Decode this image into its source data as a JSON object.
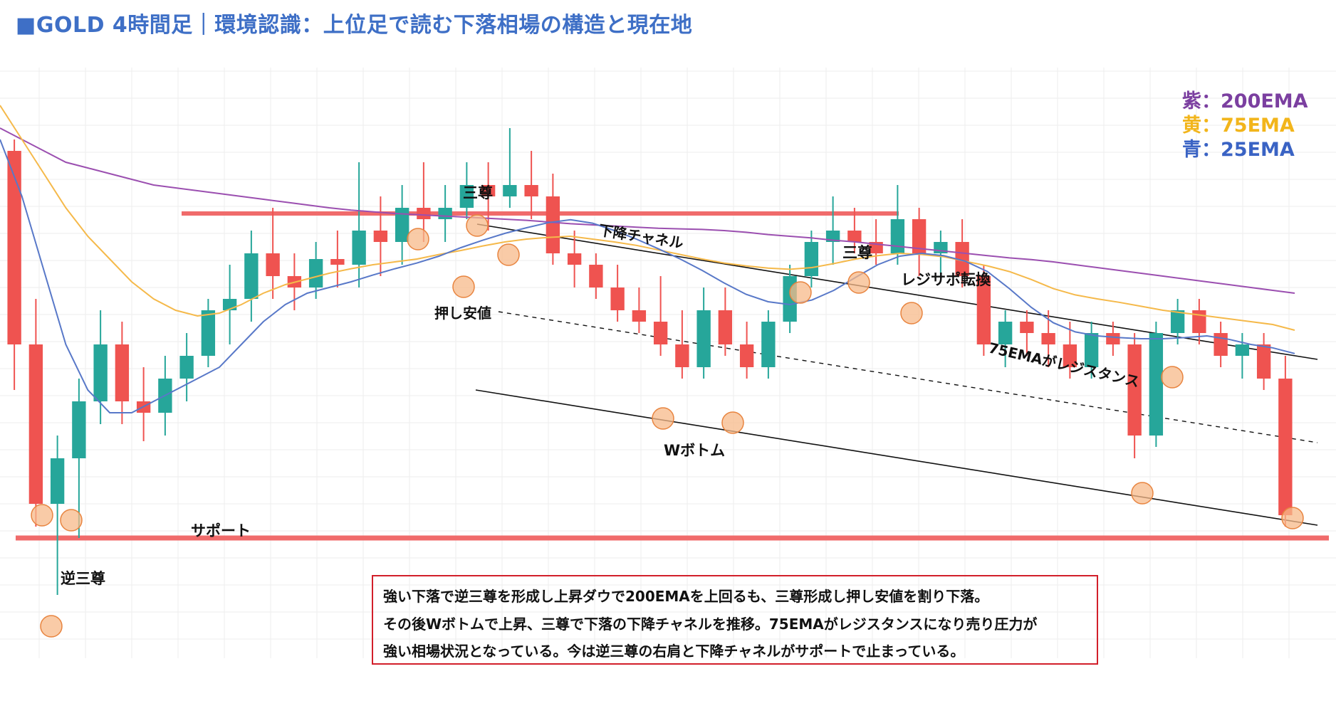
{
  "header": {
    "title": "■GOLD 4時間足｜環境認識：上位足で読む下落相場の構造と現在地"
  },
  "legend": [
    {
      "label": "紫：200EMA",
      "color": "#7b3fa0"
    },
    {
      "label": "黄：75EMA",
      "color": "#f2b51b"
    },
    {
      "label": "青：25EMA",
      "color": "#3a63c4"
    }
  ],
  "note": {
    "lines": [
      "強い下落で逆三尊を形成し上昇ダウで200EMAを上回るも、三尊形成し押し安値を割り下落。",
      "その後Wボトムで上昇、三尊で下落の下降チャネルを推移。75EMAがレジスタンスになり売り圧力が",
      "強い相場状況となっている。今は逆三尊の右肩と下降チャネルがサポートで止まっている。"
    ]
  },
  "annotations": {
    "sansou_left": "三尊",
    "channel": "下降チャネル",
    "sansou_right": "三尊",
    "role_reversal": "レジサポ転換",
    "oshi": "押し安値",
    "ema75_res": "75EMAがレジスタンス",
    "wbottom": "Wボトム",
    "support": "サポート",
    "inverse": "逆三尊"
  },
  "colors": {
    "up": "#26a69a",
    "down": "#ef5350",
    "level": "#f06b6b",
    "marker": "#f7b98a",
    "markerStroke": "#e8843f",
    "grid": "#eeeeee",
    "ema200": "#9b4fb0",
    "ema75": "#f5b94a",
    "ema25": "#5878c8"
  },
  "chart_data": {
    "type": "candlestick",
    "title": "GOLD 4時間足",
    "ylim": [
      0,
      100
    ],
    "levels": [
      {
        "name": "レジサポ転換",
        "y": 75
      },
      {
        "name": "サポート",
        "y": 18
      }
    ],
    "series": [
      {
        "name": "200EMA",
        "values": [
          90,
          88,
          86,
          84,
          83,
          82,
          81,
          80,
          79.5,
          79,
          78.5,
          78,
          77.5,
          77,
          76.5,
          76,
          75.6,
          75.3,
          75,
          74.8,
          74.6,
          74.4,
          74.2,
          74,
          73.8,
          73.5,
          73.2,
          73,
          72.8,
          72.6,
          72.4,
          72.3,
          72.2,
          72,
          71.7,
          71.3,
          71,
          70.7,
          70.3,
          70,
          69.6,
          69.2,
          68.8,
          68.4,
          68,
          67.6,
          67.2,
          66.9,
          66.5,
          66,
          65.5,
          65,
          64.5,
          64,
          63.5,
          63,
          62.5,
          62,
          61.5,
          61
        ]
      },
      {
        "name": "75EMA",
        "values": [
          94,
          88,
          82,
          76,
          71,
          67,
          63,
          60,
          58,
          57,
          57.5,
          59,
          61,
          62.5,
          63.5,
          64.5,
          65.3,
          66,
          66.5,
          67,
          67.8,
          68.5,
          69.3,
          70,
          70.5,
          70.8,
          71,
          70.5,
          70,
          69.4,
          68.6,
          67.8,
          67,
          66.3,
          65.8,
          65.4,
          65.2,
          65.5,
          66.2,
          67,
          67.6,
          68,
          67.8,
          67.4,
          66.6,
          65.8,
          64.8,
          63.4,
          61.8,
          60.7,
          60,
          59.4,
          58.7,
          58,
          57.5,
          57,
          56.5,
          56,
          55.5,
          54.5
        ]
      },
      {
        "name": "25EMA",
        "values": [
          88,
          78,
          65,
          52,
          44,
          40,
          40,
          42,
          44,
          46,
          48,
          52,
          56,
          59,
          61,
          62,
          63,
          64.2,
          65.3,
          66.3,
          67.5,
          69,
          70.3,
          71.5,
          72.5,
          73.4,
          73.9,
          73.3,
          72,
          70.5,
          68.8,
          67,
          65,
          62.8,
          60.8,
          59.5,
          59,
          59.8,
          61.5,
          63.8,
          66,
          67.5,
          68,
          67.6,
          66.6,
          64.8,
          61.8,
          58.5,
          55.8,
          54.2,
          53.5,
          53.2,
          53,
          53,
          53.2,
          53.5,
          52.9,
          52,
          51.4,
          50.4
        ]
      }
    ],
    "ohlc": [
      [
        86,
        88,
        44,
        52
      ],
      [
        52,
        60,
        20,
        24
      ],
      [
        24,
        36,
        8,
        32
      ],
      [
        32,
        46,
        18,
        42
      ],
      [
        42,
        58,
        38,
        52
      ],
      [
        52,
        56,
        38,
        42
      ],
      [
        42,
        48,
        35,
        40
      ],
      [
        40,
        50,
        36,
        46
      ],
      [
        46,
        54,
        42,
        50
      ],
      [
        50,
        60,
        48,
        58
      ],
      [
        58,
        66,
        52,
        60
      ],
      [
        60,
        72,
        56,
        68
      ],
      [
        68,
        76,
        60,
        64
      ],
      [
        64,
        68,
        58,
        62
      ],
      [
        62,
        70,
        60,
        67
      ],
      [
        67,
        72,
        62,
        66
      ],
      [
        66,
        84,
        62,
        72
      ],
      [
        72,
        78,
        64,
        70
      ],
      [
        70,
        80,
        66,
        76
      ],
      [
        76,
        84,
        70,
        74
      ],
      [
        74,
        80,
        70,
        76
      ],
      [
        76,
        84,
        74,
        80
      ],
      [
        80,
        84,
        72,
        78
      ],
      [
        78,
        90,
        76,
        80
      ],
      [
        80,
        86,
        74,
        78
      ],
      [
        78,
        82,
        66,
        68
      ],
      [
        68,
        72,
        62,
        66
      ],
      [
        66,
        68,
        60,
        62
      ],
      [
        62,
        66,
        56,
        58
      ],
      [
        58,
        62,
        54,
        56
      ],
      [
        56,
        64,
        50,
        52
      ],
      [
        52,
        58,
        46,
        48
      ],
      [
        48,
        62,
        46,
        58
      ],
      [
        58,
        62,
        50,
        52
      ],
      [
        52,
        56,
        46,
        48
      ],
      [
        48,
        58,
        46,
        56
      ],
      [
        56,
        66,
        54,
        64
      ],
      [
        64,
        72,
        62,
        70
      ],
      [
        70,
        78,
        66,
        72
      ],
      [
        72,
        76,
        68,
        70
      ],
      [
        70,
        74,
        66,
        68
      ],
      [
        68,
        80,
        66,
        74
      ],
      [
        74,
        76,
        64,
        68
      ],
      [
        68,
        72,
        64,
        70
      ],
      [
        70,
        74,
        62,
        64
      ],
      [
        64,
        66,
        50,
        52
      ],
      [
        52,
        58,
        48,
        56
      ],
      [
        56,
        58,
        50,
        54
      ],
      [
        54,
        58,
        48,
        52
      ],
      [
        52,
        56,
        46,
        48
      ],
      [
        48,
        56,
        46,
        54
      ],
      [
        54,
        56,
        50,
        52
      ],
      [
        52,
        54,
        32,
        36
      ],
      [
        36,
        56,
        34,
        54
      ],
      [
        54,
        60,
        52,
        58
      ],
      [
        58,
        60,
        52,
        54
      ],
      [
        54,
        56,
        48,
        50
      ],
      [
        50,
        54,
        46,
        52
      ],
      [
        52,
        54,
        44,
        46
      ],
      [
        46,
        50,
        20,
        22
      ]
    ]
  }
}
